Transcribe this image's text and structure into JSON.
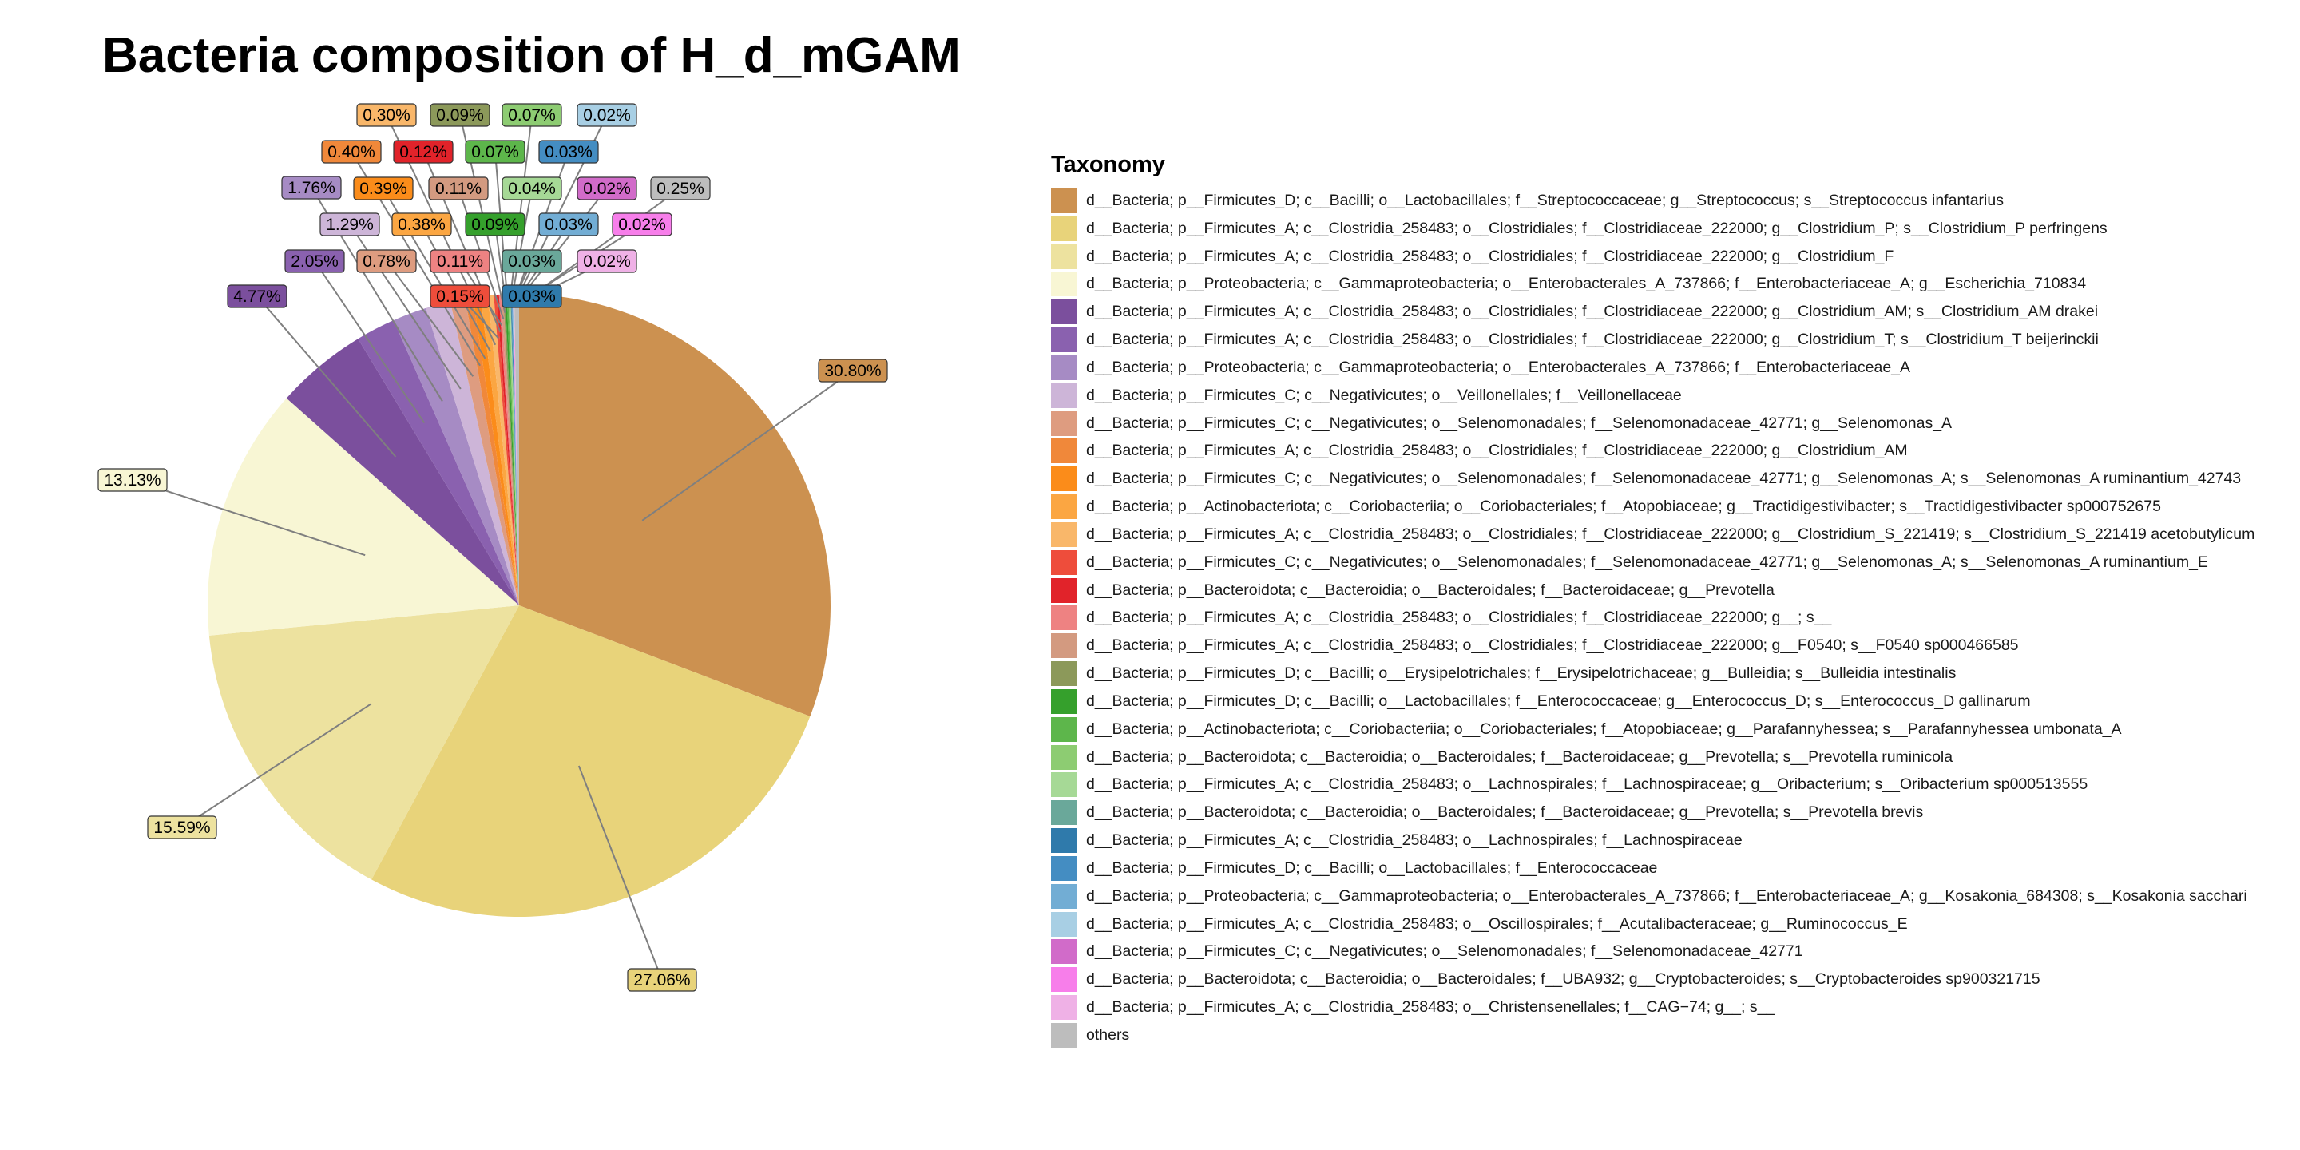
{
  "chart_data": {
    "type": "pie",
    "title": "Bacteria composition of H_d_mGAM",
    "legend_title": "Taxonomy",
    "legend_position": "right",
    "slices": [
      {
        "label": "d__Bacteria; p__Firmicutes_D; c__Bacilli; o__Lactobacillales; f__Streptococcaceae; g__Streptococcus; s__Streptococcus infantarius",
        "value": 30.8,
        "value_label": "30.80%",
        "color": "#CC9150"
      },
      {
        "label": "d__Bacteria; p__Firmicutes_A; c__Clostridia_258483; o__Clostridiales; f__Clostridiaceae_222000; g__Clostridium_P; s__Clostridium_P perfringens",
        "value": 27.06,
        "value_label": "27.06%",
        "color": "#E8D37A"
      },
      {
        "label": "d__Bacteria; p__Firmicutes_A; c__Clostridia_258483; o__Clostridiales; f__Clostridiaceae_222000; g__Clostridium_F",
        "value": 15.59,
        "value_label": "15.59%",
        "color": "#EDE29F"
      },
      {
        "label": "d__Bacteria; p__Proteobacteria; c__Gammaproteobacteria; o__Enterobacterales_A_737866; f__Enterobacteriaceae_A; g__Escherichia_710834",
        "value": 13.13,
        "value_label": "13.13%",
        "color": "#F8F6D4"
      },
      {
        "label": "d__Bacteria; p__Firmicutes_A; c__Clostridia_258483; o__Clostridiales; f__Clostridiaceae_222000; g__Clostridium_AM; s__Clostridium_AM drakei",
        "value": 4.77,
        "value_label": "4.77%",
        "color": "#7B4F9D"
      },
      {
        "label": "d__Bacteria; p__Firmicutes_A; c__Clostridia_258483; o__Clostridiales; f__Clostridiaceae_222000; g__Clostridium_T; s__Clostridium_T beijerinckii",
        "value": 2.05,
        "value_label": "2.05%",
        "color": "#8A61AF"
      },
      {
        "label": "d__Bacteria; p__Proteobacteria; c__Gammaproteobacteria; o__Enterobacterales_A_737866; f__Enterobacteriaceae_A",
        "value": 1.76,
        "value_label": "1.76%",
        "color": "#A68BC4"
      },
      {
        "label": "d__Bacteria; p__Firmicutes_C; c__Negativicutes; o__Veillonellales; f__Veillonellaceae",
        "value": 1.29,
        "value_label": "1.29%",
        "color": "#CDB5D8"
      },
      {
        "label": "d__Bacteria; p__Firmicutes_C; c__Negativicutes; o__Selenomonadales; f__Selenomonadaceae_42771; g__Selenomonas_A",
        "value": 0.78,
        "value_label": "0.78%",
        "color": "#DE9C80"
      },
      {
        "label": "d__Bacteria; p__Firmicutes_A; c__Clostridia_258483; o__Clostridiales; f__Clostridiaceae_222000; g__Clostridium_AM",
        "value": 0.4,
        "value_label": "0.40%",
        "color": "#F0883A"
      },
      {
        "label": "d__Bacteria; p__Firmicutes_C; c__Negativicutes; o__Selenomonadales; f__Selenomonadaceae_42771; g__Selenomonas_A; s__Selenomonas_A ruminantium_42743",
        "value": 0.39,
        "value_label": "0.39%",
        "color": "#FB8C1A"
      },
      {
        "label": "d__Bacteria; p__Actinobacteriota; c__Coriobacteriia; o__Coriobacteriales; f__Atopobiaceae; g__Tractidigestivibacter; s__Tractidigestivibacter sp000752675",
        "value": 0.38,
        "value_label": "0.38%",
        "color": "#FBA642"
      },
      {
        "label": "d__Bacteria; p__Firmicutes_A; c__Clostridia_258483; o__Clostridiales; f__Clostridiaceae_222000; g__Clostridium_S_221419; s__Clostridium_S_221419 acetobutylicum",
        "value": 0.3,
        "value_label": "0.30%",
        "color": "#F9B76A"
      },
      {
        "label": "d__Bacteria; p__Firmicutes_C; c__Negativicutes; o__Selenomonadales; f__Selenomonadaceae_42771; g__Selenomonas_A; s__Selenomonas_A ruminantium_E",
        "value": 0.15,
        "value_label": "0.15%",
        "color": "#EE4D3B"
      },
      {
        "label": "d__Bacteria; p__Bacteroidota; c__Bacteroidia; o__Bacteroidales; f__Bacteroidaceae; g__Prevotella",
        "value": 0.12,
        "value_label": "0.12%",
        "color": "#E1232A"
      },
      {
        "label": "d__Bacteria; p__Firmicutes_A; c__Clostridia_258483; o__Clostridiales; f__Clostridiaceae_222000; g__; s__",
        "value": 0.11,
        "value_label": "0.11%",
        "color": "#EE8282"
      },
      {
        "label": "d__Bacteria; p__Firmicutes_A; c__Clostridia_258483; o__Clostridiales; f__Clostridiaceae_222000; g__F0540; s__F0540 sp000466585",
        "value": 0.11,
        "value_label": "0.11%",
        "color": "#D39A80"
      },
      {
        "label": "d__Bacteria; p__Firmicutes_D; c__Bacilli; o__Erysipelotrichales; f__Erysipelotrichaceae; g__Bulleidia; s__Bulleidia intestinalis",
        "value": 0.09,
        "value_label": "0.09%",
        "color": "#8C995A"
      },
      {
        "label": "d__Bacteria; p__Firmicutes_D; c__Bacilli; o__Lactobacillales; f__Enterococcaceae; g__Enterococcus_D; s__Enterococcus_D gallinarum",
        "value": 0.09,
        "value_label": "0.09%",
        "color": "#35A02C"
      },
      {
        "label": "d__Bacteria; p__Actinobacteriota; c__Coriobacteriia; o__Coriobacteriales; f__Atopobiaceae; g__Parafannyhessea; s__Parafannyhessea umbonata_A",
        "value": 0.07,
        "value_label": "0.07%",
        "color": "#5DB64B"
      },
      {
        "label": "d__Bacteria; p__Bacteroidota; c__Bacteroidia; o__Bacteroidales; f__Bacteroidaceae; g__Prevotella; s__Prevotella ruminicola",
        "value": 0.07,
        "value_label": "0.07%",
        "color": "#8DCC72"
      },
      {
        "label": "d__Bacteria; p__Firmicutes_A; c__Clostridia_258483; o__Lachnospirales; f__Lachnospiraceae; g__Oribacterium; s__Oribacterium sp000513555",
        "value": 0.04,
        "value_label": "0.04%",
        "color": "#A6D996"
      },
      {
        "label": "d__Bacteria; p__Bacteroidota; c__Bacteroidia; o__Bacteroidales; f__Bacteroidaceae; g__Prevotella; s__Prevotella brevis",
        "value": 0.03,
        "value_label": "0.03%",
        "color": "#6AA89A"
      },
      {
        "label": "d__Bacteria; p__Firmicutes_A; c__Clostridia_258483; o__Lachnospirales; f__Lachnospiraceae",
        "value": 0.03,
        "value_label": "0.03%",
        "color": "#2F7AAB"
      },
      {
        "label": "d__Bacteria; p__Firmicutes_D; c__Bacilli; o__Lactobacillales; f__Enterococcaceae",
        "value": 0.03,
        "value_label": "0.03%",
        "color": "#448DC2"
      },
      {
        "label": "d__Bacteria; p__Proteobacteria; c__Gammaproteobacteria; o__Enterobacterales_A_737866; f__Enterobacteriaceae_A; g__Kosakonia_684308; s__Kosakonia sacchari",
        "value": 0.03,
        "value_label": "0.03%",
        "color": "#72ADD4"
      },
      {
        "label": "d__Bacteria; p__Firmicutes_A; c__Clostridia_258483; o__Oscillospirales; f__Acutalibacteraceae; g__Ruminococcus_E",
        "value": 0.02,
        "value_label": "0.02%",
        "color": "#A8CFE4"
      },
      {
        "label": "d__Bacteria; p__Firmicutes_C; c__Negativicutes; o__Selenomonadales; f__Selenomonadaceae_42771",
        "value": 0.02,
        "value_label": "0.02%",
        "color": "#D16BC9"
      },
      {
        "label": "d__Bacteria; p__Bacteroidota; c__Bacteroidia; o__Bacteroidales; f__UBA932; g__Cryptobacteroides; s__Cryptobacteroides sp900321715",
        "value": 0.02,
        "value_label": "0.02%",
        "color": "#F77EEA"
      },
      {
        "label": "d__Bacteria; p__Firmicutes_A; c__Clostridia_258483; o__Christensenellales; f__CAG−74; g__; s__",
        "value": 0.02,
        "value_label": "0.02%",
        "color": "#EFB1E6"
      },
      {
        "label": "others",
        "value": 0.25,
        "value_label": "0.25%",
        "color": "#BDBDBD"
      }
    ]
  }
}
